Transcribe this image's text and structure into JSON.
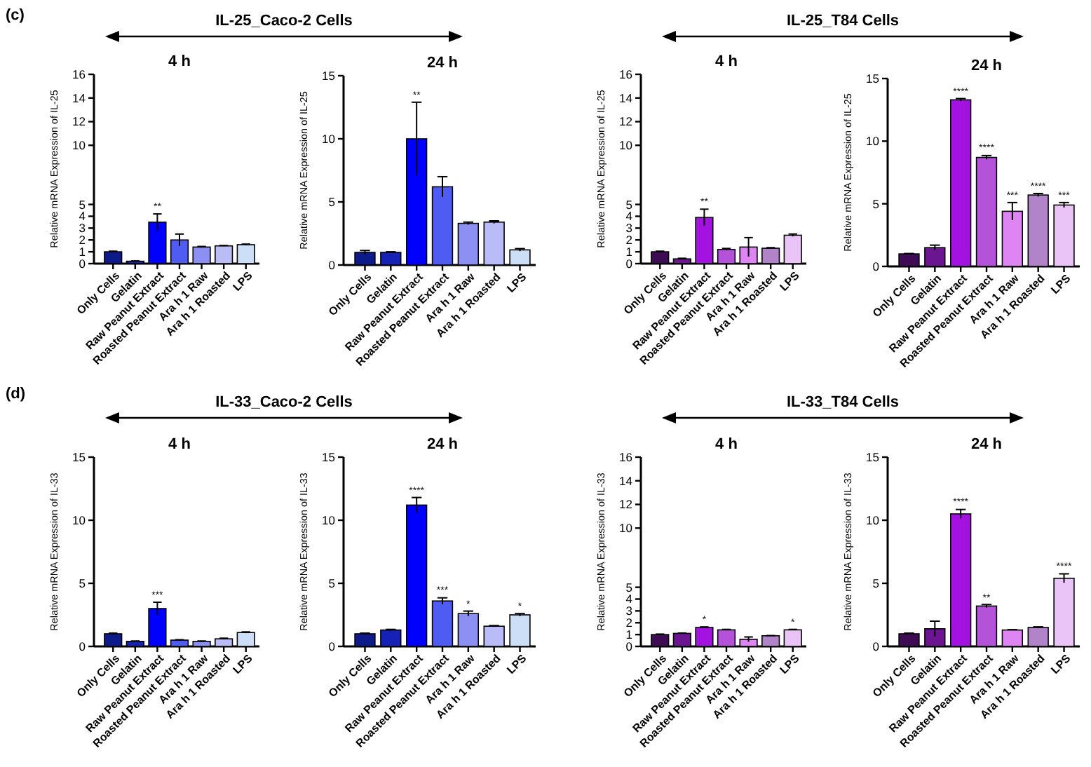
{
  "chart_data": [
    {
      "type": "bar",
      "title": "4 h",
      "ylabel": "Relative mRNA Expression of IL-25",
      "categories": [
        "Only Cells",
        "Gelatin",
        "Raw Peanut Extract",
        "Roasted Peanut Extract",
        "Ara h 1 Raw",
        "Ara h 1 Roasted",
        "LPS"
      ],
      "values": [
        1.0,
        0.2,
        3.5,
        2.0,
        1.4,
        1.5,
        1.6
      ],
      "errors": [
        0.05,
        0.03,
        0.7,
        0.5,
        0.05,
        0.03,
        0.05
      ],
      "colors": [
        "#0d1a8a",
        "#1522b5",
        "#0000ff",
        "#4f5cf2",
        "#8c90f2",
        "#babcf7",
        "#cddff7"
      ],
      "ylim": [
        0,
        16
      ],
      "yticks": [
        0,
        1,
        2,
        3,
        4,
        5,
        10,
        12,
        14,
        16
      ],
      "annotations": [
        "(c)",
        "IL-25_Caco-2 Cells",
        {
          "text": "**",
          "x": "Raw Peanut Extract",
          "y": 4.2
        }
      ]
    },
    {
      "type": "bar",
      "title": "24 h",
      "ylabel": "Relative mRNA Expression of IL-25",
      "categories": [
        "Only Cells",
        "Gelatin",
        "Raw Peanut Extract",
        "Roasted Peanut Extract",
        "Ara h 1 Raw",
        "Ara h 1 Roasted",
        "LPS"
      ],
      "values": [
        1.0,
        1.0,
        10.0,
        6.2,
        3.3,
        3.4,
        1.2
      ],
      "errors": [
        0.15,
        0.05,
        2.9,
        0.8,
        0.1,
        0.1,
        0.1
      ],
      "colors": [
        "#0d1a8a",
        "#1522b5",
        "#0000ff",
        "#4f5cf2",
        "#8c90f2",
        "#babcf7",
        "#cddff7"
      ],
      "ylim": [
        0,
        15
      ],
      "yticks": [
        0,
        5,
        10,
        15
      ],
      "annotations": [
        {
          "text": "**",
          "x": "Raw Peanut Extract",
          "y": 12.9
        }
      ]
    },
    {
      "type": "bar",
      "title": "4 h",
      "ylabel": "Relative mRNA Expression of IL-25",
      "categories": [
        "Only Cells",
        "Gelatin",
        "Raw Peanut Extract",
        "Roasted Peanut Extract",
        "Ara h 1 Raw",
        "Ara h 1 Roasted",
        "LPS"
      ],
      "values": [
        1.0,
        0.4,
        3.9,
        1.2,
        1.4,
        1.3,
        2.4
      ],
      "errors": [
        0.05,
        0.05,
        0.7,
        0.08,
        0.8,
        0.05,
        0.1
      ],
      "colors": [
        "#3e0b55",
        "#6c1591",
        "#a412e2",
        "#b453d9",
        "#de85f3",
        "#b183c9",
        "#ebc4f7"
      ],
      "ylim": [
        0,
        16
      ],
      "yticks": [
        0,
        1,
        2,
        3,
        4,
        5,
        10,
        12,
        14,
        16
      ],
      "annotations": [
        "IL-25_T84 Cells",
        {
          "text": "**",
          "x": "Raw Peanut Extract",
          "y": 4.6
        }
      ]
    },
    {
      "type": "bar",
      "title": "24 h",
      "ylabel": "Relative mRNA Expression of IL-25",
      "categories": [
        "Only Cells",
        "Gelatin",
        "Raw Peanut Extract",
        "Roasted Peanut Extract",
        "Ara h 1 Raw",
        "Ara h 1 Roasted",
        "LPS"
      ],
      "values": [
        1.0,
        1.5,
        13.3,
        8.7,
        4.4,
        5.7,
        4.9
      ],
      "errors": [
        0.03,
        0.2,
        0.1,
        0.15,
        0.7,
        0.12,
        0.2
      ],
      "colors": [
        "#3e0b55",
        "#6c1591",
        "#a412e2",
        "#b453d9",
        "#de85f3",
        "#b183c9",
        "#ebc4f7"
      ],
      "ylim": [
        0,
        15
      ],
      "yticks": [
        0,
        5,
        10,
        15
      ],
      "annotations": [
        {
          "text": "****",
          "x": "Raw Peanut Extract",
          "y": 13.4
        },
        {
          "text": "****",
          "x": "Roasted Peanut Extract",
          "y": 8.9
        },
        {
          "text": "***",
          "x": "Ara h 1 Raw",
          "y": 5.1
        },
        {
          "text": "****",
          "x": "Ara h 1 Roasted",
          "y": 5.8
        },
        {
          "text": "***",
          "x": "LPS",
          "y": 5.1
        }
      ]
    },
    {
      "type": "bar",
      "title": "4 h",
      "ylabel": "Relative mRNA Expression of IL-33",
      "categories": [
        "Only Cells",
        "Gelatin",
        "Raw Peanut Extract",
        "Roasted Peanut Extract",
        "Ara h 1 Raw",
        "Ara h 1 Roasted",
        "LPS"
      ],
      "values": [
        1.0,
        0.4,
        3.0,
        0.5,
        0.4,
        0.6,
        1.1
      ],
      "errors": [
        0.05,
        0.03,
        0.5,
        0.03,
        0.03,
        0.05,
        0.05
      ],
      "colors": [
        "#0d1a8a",
        "#1522b5",
        "#0000ff",
        "#4f5cf2",
        "#8c90f2",
        "#babcf7",
        "#cddff7"
      ],
      "ylim": [
        0,
        15
      ],
      "yticks": [
        0,
        5,
        10,
        15
      ],
      "annotations": [
        "(d)",
        "IL-33_Caco-2 Cells",
        {
          "text": "***",
          "x": "Raw Peanut Extract",
          "y": 3.5
        }
      ]
    },
    {
      "type": "bar",
      "title": "24 h",
      "ylabel": "Relative mRNA Expression of IL-33",
      "categories": [
        "Only Cells",
        "Gelatin",
        "Raw Peanut Extract",
        "Roasted Peanut Extract",
        "Ara h 1 Raw",
        "Ara h 1 Roasted",
        "LPS"
      ],
      "values": [
        1.0,
        1.3,
        11.2,
        3.6,
        2.6,
        1.6,
        2.5
      ],
      "errors": [
        0.05,
        0.05,
        0.6,
        0.25,
        0.2,
        0.05,
        0.1
      ],
      "colors": [
        "#0d1a8a",
        "#1522b5",
        "#0000ff",
        "#4f5cf2",
        "#8c90f2",
        "#babcf7",
        "#cddff7"
      ],
      "ylim": [
        0,
        15
      ],
      "yticks": [
        0,
        5,
        10,
        15
      ],
      "annotations": [
        {
          "text": "****",
          "x": "Raw Peanut Extract",
          "y": 11.8
        },
        {
          "text": "***",
          "x": "Roasted Peanut Extract",
          "y": 3.9
        },
        {
          "text": "*",
          "x": "Ara h 1 Raw",
          "y": 2.8
        },
        {
          "text": "*",
          "x": "LPS",
          "y": 2.6
        }
      ]
    },
    {
      "type": "bar",
      "title": "4 h",
      "ylabel": "Relative mRNA Expression of IL-33",
      "categories": [
        "Only Cells",
        "Gelatin",
        "Raw Peanut Extract",
        "Roasted Peanut Extract",
        "Ara h 1 Raw",
        "Ara h 1 Roasted",
        "LPS"
      ],
      "values": [
        1.0,
        1.1,
        1.6,
        1.4,
        0.6,
        0.9,
        1.4
      ],
      "errors": [
        0.04,
        0.03,
        0.05,
        0.04,
        0.2,
        0.02,
        0.04
      ],
      "colors": [
        "#3e0b55",
        "#6c1591",
        "#a412e2",
        "#b453d9",
        "#de85f3",
        "#b183c9",
        "#ebc4f7"
      ],
      "ylim": [
        0,
        16
      ],
      "yticks": [
        0,
        1,
        2,
        3,
        4,
        5,
        10,
        12,
        14,
        16
      ],
      "annotations": [
        "IL-33_T84 Cells",
        {
          "text": "*",
          "x": "Raw Peanut Extract",
          "y": 1.65
        },
        {
          "text": "*",
          "x": "LPS",
          "y": 1.45
        }
      ]
    },
    {
      "type": "bar",
      "title": "24 h",
      "ylabel": "Relative mRNA Expression of IL-33",
      "categories": [
        "Only Cells",
        "Gelatin",
        "Raw Peanut Extract",
        "Roasted Peanut Extract",
        "Ara h 1 Raw",
        "Ara h 1 Roasted",
        "LPS"
      ],
      "values": [
        1.0,
        1.4,
        10.5,
        3.2,
        1.3,
        1.5,
        5.4
      ],
      "errors": [
        0.05,
        0.6,
        0.35,
        0.12,
        0.03,
        0.05,
        0.35
      ],
      "colors": [
        "#3e0b55",
        "#6c1591",
        "#a412e2",
        "#b453d9",
        "#de85f3",
        "#b183c9",
        "#ebc4f7"
      ],
      "ylim": [
        0,
        15
      ],
      "yticks": [
        0,
        5,
        10,
        15
      ],
      "annotations": [
        {
          "text": "****",
          "x": "Raw Peanut Extract",
          "y": 10.9
        },
        {
          "text": "**",
          "x": "Roasted Peanut Extract",
          "y": 3.3
        },
        {
          "text": "****",
          "x": "LPS",
          "y": 5.8
        }
      ]
    }
  ]
}
